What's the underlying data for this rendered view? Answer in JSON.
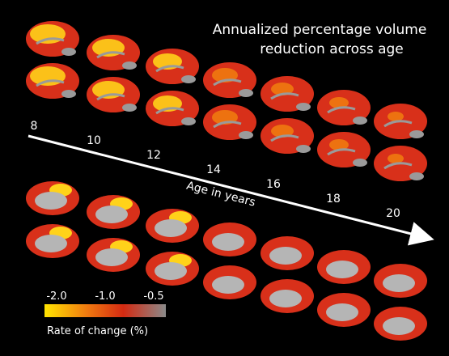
{
  "figure": {
    "title_lines": [
      "Annualized percentage volume",
      "reduction across age"
    ],
    "ages": [
      "8",
      "10",
      "12",
      "14",
      "16",
      "18",
      "20"
    ],
    "axis_label": "Age in years",
    "colorbar": {
      "ticks": [
        "-2.0",
        "-1.0",
        "-0.5"
      ],
      "label": "Rate of change (%)"
    }
  }
}
